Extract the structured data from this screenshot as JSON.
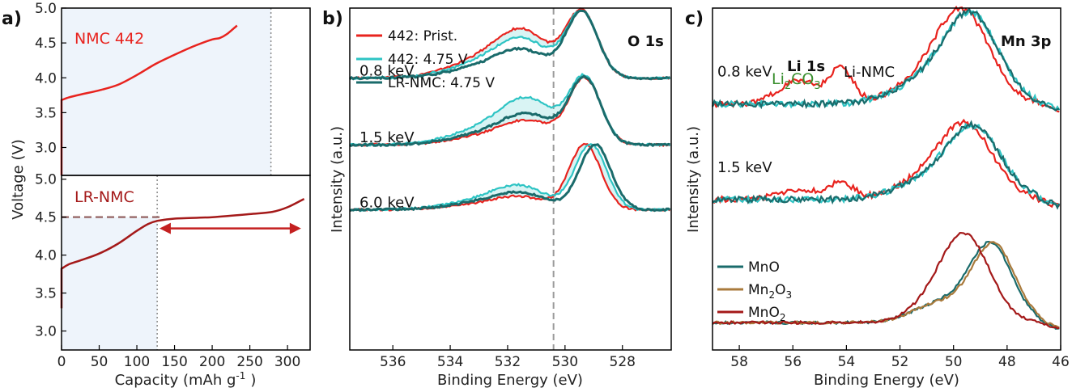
{
  "chart_data": [
    {
      "panel": "a)",
      "type": "line",
      "xlabel": "Capacity (mAh g",
      "xlabel_sup": "-1",
      "xlabel_end": ")",
      "ylabel": "Voltage (V)",
      "xlim": [
        0,
        330
      ],
      "x_ticks": [
        "0",
        "50",
        "100",
        "150",
        "200",
        "250",
        "300"
      ],
      "top": {
        "label": "NMC 442",
        "color": "#e8231e",
        "ylim": [
          2.6,
          5.0
        ],
        "y_ticks": [
          "3.0",
          "3.5",
          "4.0",
          "4.5",
          "5.0"
        ],
        "shade_to_x": 278,
        "dotted_x": 278,
        "points": [
          [
            0,
            3.68
          ],
          [
            10,
            3.72
          ],
          [
            25,
            3.76
          ],
          [
            50,
            3.82
          ],
          [
            75,
            3.9
          ],
          [
            100,
            4.04
          ],
          [
            125,
            4.2
          ],
          [
            150,
            4.33
          ],
          [
            175,
            4.45
          ],
          [
            200,
            4.55
          ],
          [
            210,
            4.57
          ],
          [
            220,
            4.63
          ],
          [
            233,
            4.75
          ]
        ]
      },
      "bottom": {
        "label": "LR-NMC",
        "color": "#a41919",
        "ylim": [
          2.75,
          5.05
        ],
        "y_ticks": [
          "3.0",
          "3.5",
          "4.0",
          "4.5",
          "5.0"
        ],
        "shade_to_x": 127,
        "dotted_x": 127,
        "plateau_y": 4.5,
        "arrow_x": [
          130,
          318
        ],
        "arrow_color": "#c42020",
        "points": [
          [
            0,
            3.82
          ],
          [
            10,
            3.88
          ],
          [
            25,
            3.93
          ],
          [
            50,
            4.02
          ],
          [
            75,
            4.15
          ],
          [
            100,
            4.32
          ],
          [
            115,
            4.41
          ],
          [
            127,
            4.45
          ],
          [
            150,
            4.48
          ],
          [
            200,
            4.5
          ],
          [
            250,
            4.54
          ],
          [
            280,
            4.57
          ],
          [
            300,
            4.63
          ],
          [
            322,
            4.74
          ]
        ]
      }
    },
    {
      "panel": "b)",
      "type": "line",
      "title": "O 1s",
      "xlabel": "Binding Energy (eV)",
      "ylabel": "Intensity (a.u.)",
      "xlim": [
        537.5,
        526.3
      ],
      "x_ticks": [
        "536",
        "534",
        "532",
        "530",
        "528"
      ],
      "dashed_x": 530.4,
      "legend": [
        {
          "name": "442: Prist.",
          "color": "#e8231e"
        },
        {
          "name": "442: 4.75 V",
          "color": "#2ec4c4"
        },
        {
          "name": "LR-NMC: 4.75 V",
          "color": "#1a6b6b"
        }
      ],
      "groups": [
        {
          "label": "0.8 keV",
          "baseline": 0.795,
          "peak": 529.4,
          "peak_y": 0.985,
          "shoulder": 531.4,
          "shoulder_y": [
            0.905,
            0.885,
            0.86
          ]
        },
        {
          "label": "1.5 keV",
          "baseline": 0.6,
          "peak": 529.3,
          "peak_y": 0.79,
          "shoulder": 531.2,
          "shoulder_y": [
            0.655,
            0.705,
            0.67
          ]
        },
        {
          "label": "6.0 keV",
          "baseline": 0.41,
          "peak": 529.1,
          "peak_y": 0.6,
          "shoulder": 531.5,
          "shoulder_y": [
            0.44,
            0.465,
            0.45
          ]
        }
      ]
    },
    {
      "panel": "c)",
      "type": "line",
      "xlabel": "Binding Energy (eV)",
      "ylabel": "Intensity (a.u.)",
      "xlim": [
        59.0,
        46.0
      ],
      "x_ticks": [
        "58",
        "56",
        "54",
        "52",
        "50",
        "48",
        "46"
      ],
      "label_li": "Li 1s",
      "label_mn": "Mn 3p",
      "label_li2co3": "Li",
      "label_li2co3_sub": "2",
      "label_li2co3_end": "CO",
      "label_li2co3_sub2": "3",
      "label_linmc": "Li-NMC",
      "legend": [
        {
          "name": "MnO",
          "color": "#1a6b6b",
          "sub": "",
          "end": "",
          "sub2": ""
        },
        {
          "name": "Mn",
          "color": "#a97a3c",
          "sub": "2",
          "end": "O",
          "sub2": "3"
        },
        {
          "name": "MnO",
          "color": "#a41919",
          "sub": "2",
          "end": "",
          "sub2": ""
        }
      ],
      "groups": [
        {
          "label": "0.8 keV",
          "baseline": 0.72,
          "peak": 49.3,
          "peak_y": 0.965
        },
        {
          "label": "1.5 keV",
          "baseline": 0.44,
          "peak": 49.2,
          "peak_y": 0.64
        },
        {
          "label": "",
          "baseline": 0.08,
          "peak": 48.7,
          "peak_y": 0.305
        }
      ],
      "colors": {
        "red": "#e8231e",
        "cyan": "#2ec4c4",
        "teal": "#1a6b6b",
        "green": "#3a8f2f"
      }
    }
  ]
}
